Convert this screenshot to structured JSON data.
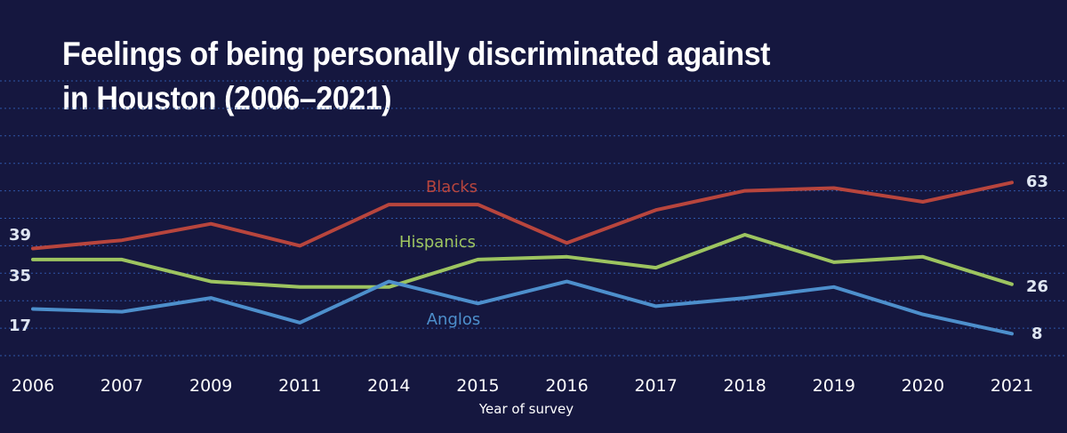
{
  "chart_data": {
    "type": "line",
    "title_lines": [
      "Feelings of being personally discriminated against",
      "in Houston (2006–2021)"
    ],
    "xlabel": "Year of survey",
    "ylabel": "",
    "categories": [
      "2006",
      "2007",
      "2009",
      "2011",
      "2014",
      "2015",
      "2016",
      "2017",
      "2018",
      "2019",
      "2020",
      "2021"
    ],
    "ylim": [
      0,
      110
    ],
    "grid": "horizontal dashed",
    "series": [
      {
        "name": "Blacks",
        "color": "#b8453d",
        "values": [
          39,
          42,
          48,
          40,
          55,
          55,
          41,
          53,
          60,
          61,
          56,
          63
        ],
        "start_label": "39",
        "end_label": "63"
      },
      {
        "name": "Hispanics",
        "color": "#9dc460",
        "values": [
          35,
          35,
          27,
          25,
          25,
          35,
          36,
          32,
          44,
          34,
          36,
          26
        ],
        "start_label": "35",
        "end_label": "26"
      },
      {
        "name": "Anglos",
        "color": "#4d8fcc",
        "values": [
          17,
          16,
          21,
          12,
          27,
          19,
          27,
          18,
          21,
          25,
          15,
          8
        ],
        "start_label": "17",
        "end_label": "8"
      }
    ]
  }
}
